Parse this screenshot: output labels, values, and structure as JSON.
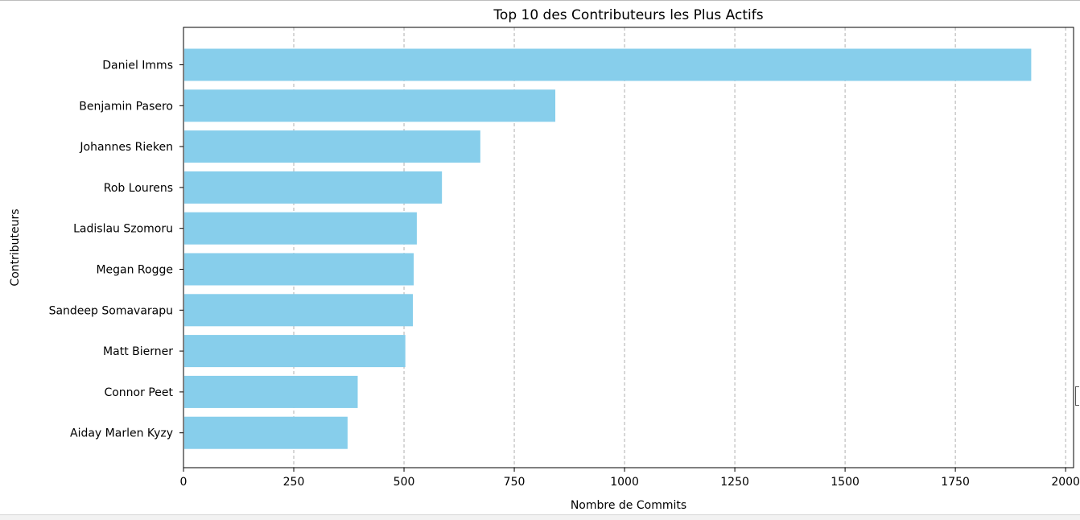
{
  "chart_data": {
    "type": "bar",
    "orientation": "horizontal",
    "title": "Top 10 des Contributeurs les Plus Actifs",
    "xlabel": "Nombre de Commits",
    "ylabel": "Contributeurs",
    "categories": [
      "Daniel Imms",
      "Benjamin Pasero",
      "Johannes Rieken",
      "Rob Lourens",
      "Ladislau Szomoru",
      "Megan Rogge",
      "Sandeep Somavarapu",
      "Matt Bierner",
      "Connor Peet",
      "Aiday Marlen Kyzy"
    ],
    "values": [
      1922,
      843,
      673,
      586,
      529,
      522,
      520,
      503,
      395,
      372
    ],
    "xlim": [
      0,
      2018
    ],
    "xticks": [
      0,
      250,
      500,
      750,
      1000,
      1250,
      1500,
      1750,
      2000
    ],
    "xtick_labels": [
      "0",
      "250",
      "500",
      "750",
      "1000",
      "1250",
      "1500",
      "1750",
      "2000"
    ],
    "grid": "x-axis dashed",
    "bar_color": "#87CEEB",
    "grid_color": "#b0b0b0",
    "legend": "none"
  }
}
